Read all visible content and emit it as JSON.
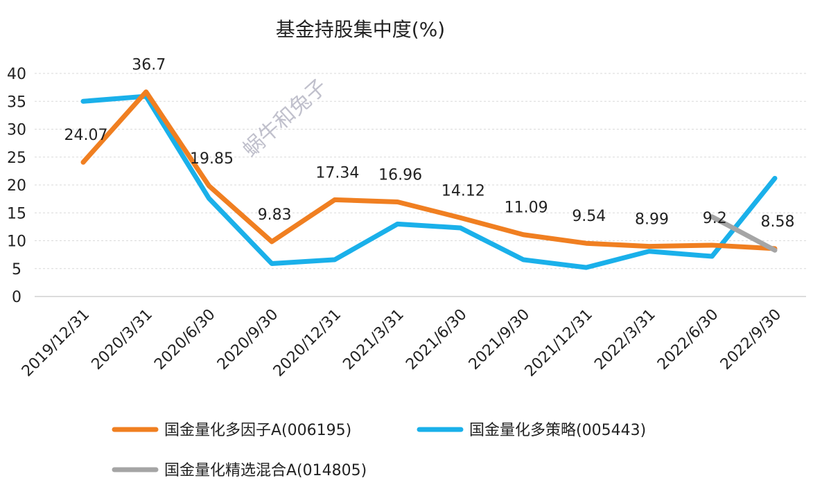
{
  "chart_data": {
    "type": "line",
    "title": "基金持股集中度(%)",
    "xlabel": "",
    "ylabel": "",
    "ylim": [
      0,
      40
    ],
    "yticks": [
      0,
      5,
      10,
      15,
      20,
      25,
      30,
      35,
      40
    ],
    "grid": true,
    "legend_position": "bottom",
    "categories": [
      "2019/12/31",
      "2020/3/31",
      "2020/6/30",
      "2020/9/30",
      "2020/12/31",
      "2021/3/31",
      "2021/6/30",
      "2021/9/30",
      "2021/12/31",
      "2022/3/31",
      "2022/6/30",
      "2022/9/30"
    ],
    "series": [
      {
        "name": "国金量化多因子A(006195)",
        "color": "#f07f21",
        "values": [
          24.07,
          36.7,
          19.85,
          9.83,
          17.34,
          16.96,
          14.12,
          11.09,
          9.54,
          8.99,
          9.2,
          8.58
        ],
        "data_labels": [
          "24.07",
          "36.7",
          "19.85",
          "9.83",
          "17.34",
          "16.96",
          "14.12",
          "11.09",
          "9.54",
          "8.99",
          "9.2",
          "8.58"
        ]
      },
      {
        "name": "国金量化多策略(005443)",
        "color": "#1ab0ea",
        "values": [
          35.0,
          35.9,
          17.6,
          5.9,
          6.6,
          13.0,
          12.3,
          6.6,
          5.2,
          8.1,
          7.2,
          21.2
        ]
      },
      {
        "name": "国金量化精选混合A(014805)",
        "color": "#a5a5a5",
        "values": [
          null,
          null,
          null,
          null,
          null,
          null,
          null,
          null,
          null,
          null,
          14.3,
          8.3
        ]
      }
    ]
  },
  "watermark": "蜗牛和兔子"
}
